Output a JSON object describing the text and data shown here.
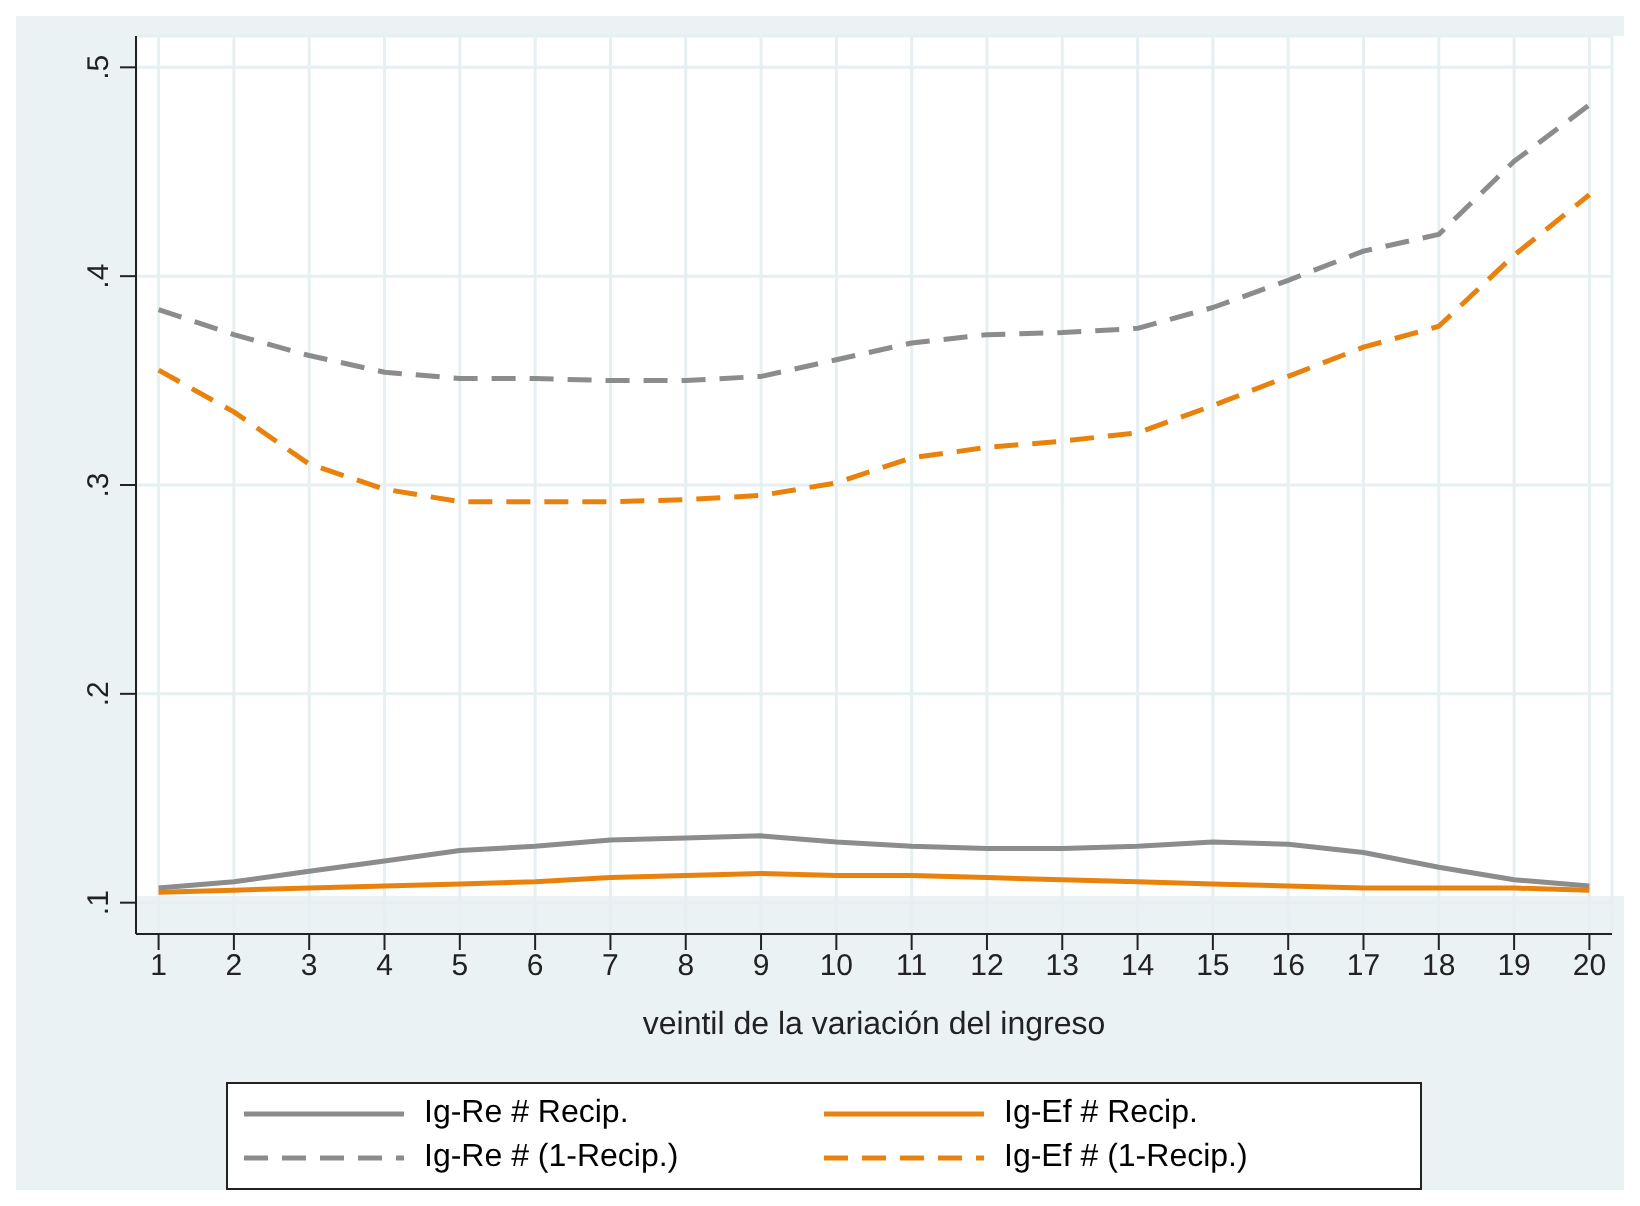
{
  "chart_data": {
    "type": "line",
    "xlabel": "veintil de la variación del ingreso",
    "x": [
      1,
      2,
      3,
      4,
      5,
      6,
      7,
      8,
      9,
      10,
      11,
      12,
      13,
      14,
      15,
      16,
      17,
      18,
      19,
      20
    ],
    "xlim": [
      0.7,
      20.3
    ],
    "xticks": [
      1,
      2,
      3,
      4,
      5,
      6,
      7,
      8,
      9,
      10,
      11,
      12,
      13,
      14,
      15,
      16,
      17,
      18,
      19,
      20
    ],
    "ylim": [
      0.085,
      0.515
    ],
    "yticks": [
      {
        "value": 0.1,
        "label": ".1"
      },
      {
        "value": 0.2,
        "label": ".2"
      },
      {
        "value": 0.3,
        "label": ".3"
      },
      {
        "value": 0.4,
        "label": ".4"
      },
      {
        "value": 0.5,
        "label": ".5"
      }
    ],
    "grid": true,
    "legend": "bottom",
    "marker": "none",
    "series": [
      {
        "name": "Ig-Re # Recip.",
        "color": "#8c8c8c",
        "line_style": "solid",
        "values": [
          0.107,
          0.11,
          0.115,
          0.12,
          0.125,
          0.127,
          0.13,
          0.131,
          0.132,
          0.129,
          0.127,
          0.126,
          0.126,
          0.127,
          0.129,
          0.128,
          0.124,
          0.117,
          0.111,
          0.108
        ]
      },
      {
        "name": "Ig-Ef # Recip.",
        "color": "#e8820c",
        "line_style": "solid",
        "values": [
          0.105,
          0.106,
          0.107,
          0.108,
          0.109,
          0.11,
          0.112,
          0.113,
          0.114,
          0.113,
          0.113,
          0.112,
          0.111,
          0.11,
          0.109,
          0.108,
          0.107,
          0.107,
          0.107,
          0.106
        ]
      },
      {
        "name": "Ig-Re # (1-Recip.)",
        "color": "#8c8c8c",
        "line_style": "dashed",
        "values": [
          0.384,
          0.372,
          0.362,
          0.354,
          0.351,
          0.351,
          0.35,
          0.35,
          0.352,
          0.36,
          0.368,
          0.372,
          0.373,
          0.375,
          0.385,
          0.398,
          0.412,
          0.42,
          0.455,
          0.482
        ]
      },
      {
        "name": "Ig-Ef # (1-Recip.)",
        "color": "#e8820c",
        "line_style": "dashed",
        "values": [
          0.355,
          0.335,
          0.31,
          0.298,
          0.292,
          0.292,
          0.292,
          0.293,
          0.295,
          0.301,
          0.313,
          0.318,
          0.321,
          0.325,
          0.338,
          0.352,
          0.366,
          0.376,
          0.41,
          0.439
        ]
      }
    ]
  }
}
